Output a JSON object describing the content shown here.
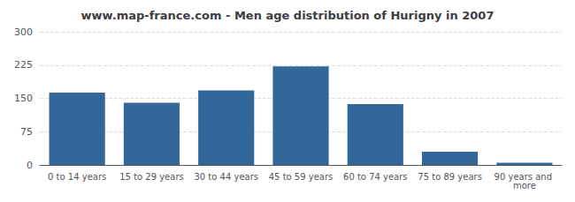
{
  "chart_data": {
    "type": "bar",
    "title": "www.map-france.com - Men age distribution of Hurigny in 2007",
    "categories": [
      "0 to 14 years",
      "15 to 29 years",
      "30 to 44 years",
      "45 to 59 years",
      "60 to 74 years",
      "75 to 89 years",
      "90 years and more"
    ],
    "values": [
      163,
      140,
      168,
      222,
      137,
      30,
      5
    ],
    "color": "#336699",
    "ylim": [
      0,
      300
    ],
    "yticks": [
      0,
      75,
      150,
      225,
      300
    ],
    "grid": true
  }
}
